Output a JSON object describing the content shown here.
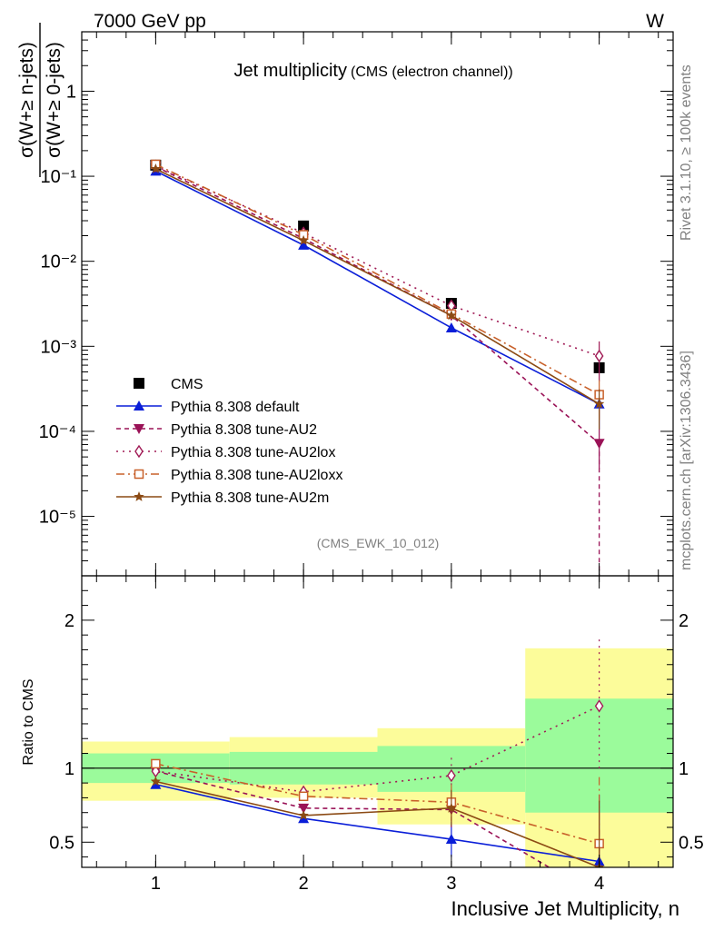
{
  "header": {
    "left": "7000 GeV pp",
    "right": "W"
  },
  "side_labels": {
    "rivet": "Rivet 3.1.10, ≥ 100k events",
    "mcplots": "mcplots.cern.ch [arXiv:1306.3436]"
  },
  "colors": {
    "cms": "#000000",
    "default": "#0a1ed8",
    "au2": "#9a1257",
    "au2lox": "#a01a55",
    "au2loxx": "#c8602a",
    "au2m": "#8b4a14",
    "band_inner": "#9bfb9b",
    "band_outer": "#fcfc9a"
  },
  "chart_data": [
    {
      "type": "line",
      "title": "Jet multiplicity",
      "subtitle": "(CMS (electron channel))",
      "watermark": "(CMS_EWK_10_012)",
      "ylabel_numerator": "σ(W+≥ n-jets)",
      "ylabel_denominator": "σ(W+≥ 0-jets)",
      "yscale": "log",
      "ylim": [
        2e-06,
        5
      ],
      "xlim": [
        0.5,
        4.5
      ],
      "y_ticks": [
        {
          "value": 1,
          "label": "1"
        },
        {
          "value": 0.1,
          "label": "10⁻¹"
        },
        {
          "value": 0.01,
          "label": "10⁻²"
        },
        {
          "value": 0.001,
          "label": "10⁻³"
        },
        {
          "value": 0.0001,
          "label": "10⁻⁴"
        },
        {
          "value": 1e-05,
          "label": "10⁻⁵"
        }
      ],
      "legend_position": "lower-left",
      "series": [
        {
          "name": "CMS",
          "marker": "square",
          "x": [
            1,
            2,
            3,
            4
          ],
          "y": [
            0.135,
            0.026,
            0.0032,
            0.00056
          ]
        },
        {
          "name": "Pythia 8.308 default",
          "marker": "triangle-up",
          "x": [
            1,
            2,
            3,
            4
          ],
          "y": [
            0.115,
            0.0155,
            0.00165,
            0.00021
          ]
        },
        {
          "name": "Pythia 8.308 tune-AU2",
          "marker": "triangle-down",
          "x": [
            1,
            2,
            3,
            4
          ],
          "y": [
            0.13,
            0.0185,
            0.0023,
            7.2e-05
          ]
        },
        {
          "name": "Pythia 8.308 tune-AU2lox",
          "marker": "diamond",
          "x": [
            1,
            2,
            3,
            4
          ],
          "y": [
            0.132,
            0.0215,
            0.003,
            0.00077
          ]
        },
        {
          "name": "Pythia 8.308 tune-AU2loxx",
          "marker": "open-square",
          "x": [
            1,
            2,
            3,
            4
          ],
          "y": [
            0.138,
            0.0205,
            0.0024,
            0.00027
          ]
        },
        {
          "name": "Pythia 8.308 tune-AU2m",
          "marker": "star",
          "x": [
            1,
            2,
            3,
            4
          ],
          "y": [
            0.122,
            0.0175,
            0.0023,
            0.00021
          ]
        }
      ]
    },
    {
      "type": "line",
      "ylabel": "Ratio to CMS",
      "xlabel": "Inclusive Jet Multiplicity, n",
      "ylim": [
        0.33,
        2.3
      ],
      "xlim": [
        0.5,
        4.5
      ],
      "x_ticks": [
        1,
        2,
        3,
        4
      ],
      "y_ticks": [
        {
          "value": 0.5,
          "label": "0.5"
        },
        {
          "value": 1,
          "label": "1"
        },
        {
          "value": 2,
          "label": "2"
        }
      ],
      "reference_line": 1,
      "bands": [
        {
          "xmin": 0.5,
          "xmax": 1.5,
          "inner": [
            0.9,
            1.1
          ],
          "outer": [
            0.78,
            1.18
          ]
        },
        {
          "xmin": 1.5,
          "xmax": 2.5,
          "inner": [
            0.89,
            1.11
          ],
          "outer": [
            0.8,
            1.21
          ]
        },
        {
          "xmin": 2.5,
          "xmax": 3.5,
          "inner": [
            0.84,
            1.15
          ],
          "outer": [
            0.62,
            1.27
          ]
        },
        {
          "xmin": 3.5,
          "xmax": 4.5,
          "inner": [
            0.7,
            1.47
          ],
          "outer": [
            0.33,
            1.81
          ]
        }
      ],
      "series": [
        {
          "name": "Pythia 8.308 default",
          "x": [
            1,
            2,
            3,
            4
          ],
          "y": [
            0.89,
            0.66,
            0.52,
            0.37
          ]
        },
        {
          "name": "Pythia 8.308 tune-AU2",
          "x": [
            1,
            2,
            3,
            4
          ],
          "y": [
            0.98,
            0.73,
            0.72,
            0.13
          ]
        },
        {
          "name": "Pythia 8.308 tune-AU2lox",
          "x": [
            1,
            2,
            3,
            4
          ],
          "y": [
            0.98,
            0.84,
            0.95,
            1.42
          ]
        },
        {
          "name": "Pythia 8.308 tune-AU2loxx",
          "x": [
            1,
            2,
            3,
            4
          ],
          "y": [
            1.03,
            0.81,
            0.77,
            0.49
          ]
        },
        {
          "name": "Pythia 8.308 tune-AU2m",
          "x": [
            1,
            2,
            3,
            4
          ],
          "y": [
            0.91,
            0.68,
            0.73,
            0.33
          ]
        }
      ]
    }
  ]
}
